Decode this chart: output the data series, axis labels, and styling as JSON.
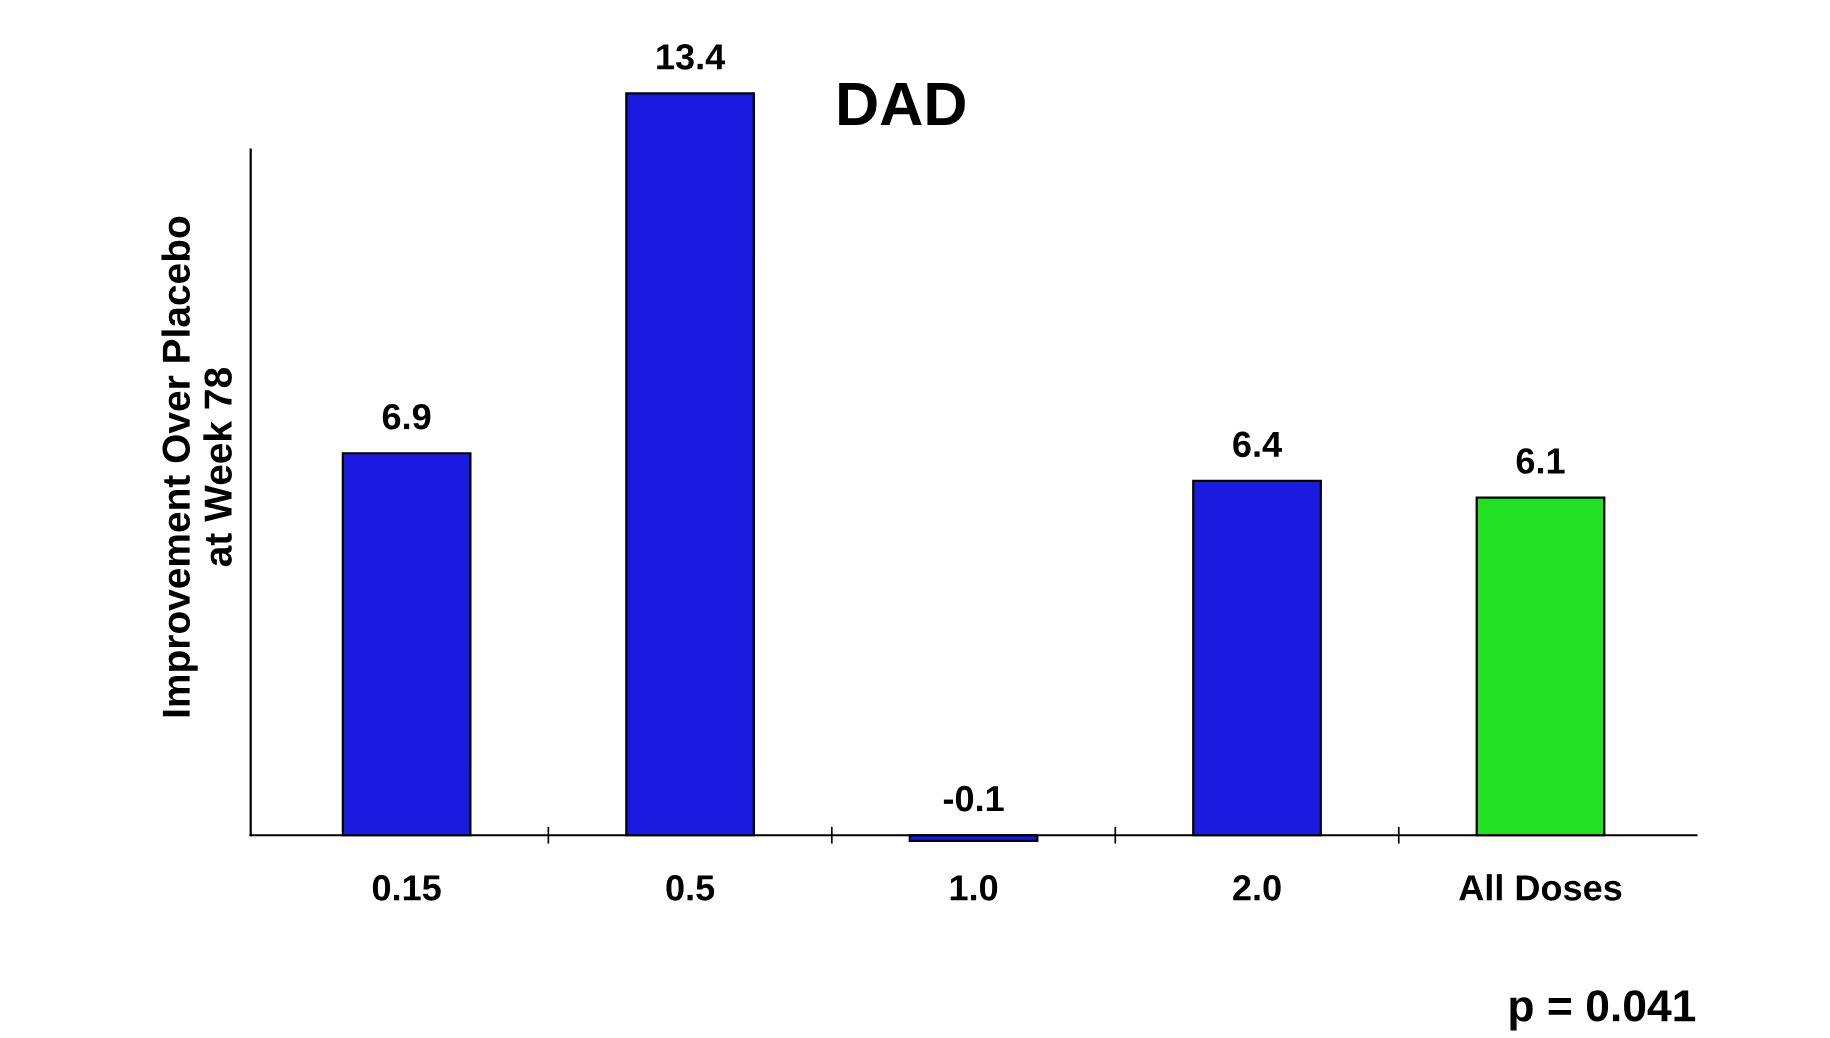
{
  "chart_data": {
    "type": "bar",
    "title": "DAD",
    "ylabel": "Improvement Over Placebo\nat Week 78",
    "categories": [
      "0.15",
      "0.5",
      "1.0",
      "2.0",
      "All Doses"
    ],
    "values": [
      6.9,
      13.4,
      -0.1,
      6.4,
      6.1
    ],
    "colors": [
      "#1a1ae0",
      "#1a1ae0",
      "#1a1ae0",
      "#1a1ae0",
      "#22e022"
    ],
    "data_labels": true,
    "grid": false,
    "legend": false,
    "annotations": [
      "p = 0.041"
    ]
  }
}
